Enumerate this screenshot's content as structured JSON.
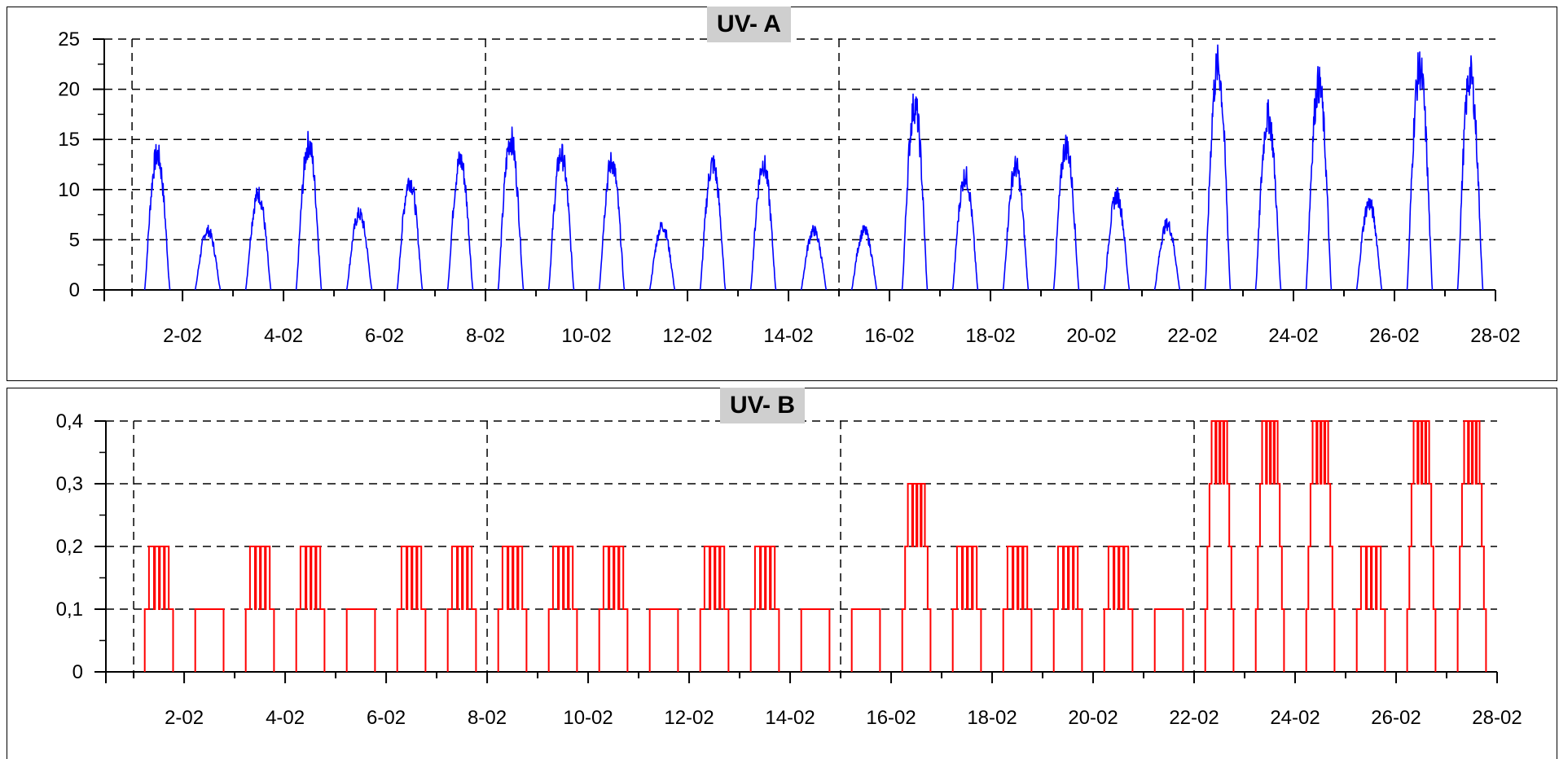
{
  "colors": {
    "uva": "#0000ff",
    "uvb": "#ff0000",
    "grid": "#000000",
    "title_bg": "#cfcfcf"
  },
  "chart_data": [
    {
      "type": "line",
      "title": "UV- A",
      "xlabel": "",
      "ylabel": "",
      "x_unit": "day of February",
      "xlim": [
        0.45,
        28
      ],
      "ylim": [
        0,
        25
      ],
      "y_ticks": [
        0,
        5,
        10,
        15,
        20,
        25
      ],
      "y_tick_labels": [
        "0",
        "5",
        "10",
        "15",
        "20",
        "25"
      ],
      "x_ticks": [
        2,
        4,
        6,
        8,
        10,
        12,
        14,
        16,
        18,
        20,
        22,
        24,
        26,
        28
      ],
      "x_tick_labels": [
        "2-02",
        "4-02",
        "6-02",
        "8-02",
        "10-02",
        "12-02",
        "14-02",
        "16-02",
        "18-02",
        "20-02",
        "22-02",
        "24-02",
        "26-02",
        "28-02"
      ],
      "vertical_gridlines": [
        1,
        8,
        15,
        22
      ],
      "grid": "dashed horizontal at major y ticks",
      "series": [
        {
          "daily_peaks": [
            {
              "day": 1,
              "peak": 14.8
            },
            {
              "day": 2,
              "peak": 6.5
            },
            {
              "day": 3,
              "peak": 10.5
            },
            {
              "day": 4,
              "peak": 16.0
            },
            {
              "day": 5,
              "peak": 8.3
            },
            {
              "day": 6,
              "peak": 12.0
            },
            {
              "day": 7,
              "peak": 14.2
            },
            {
              "day": 8,
              "peak": 16.5
            },
            {
              "day": 9,
              "peak": 14.8
            },
            {
              "day": 10,
              "peak": 14.0
            },
            {
              "day": 11,
              "peak": 7.0
            },
            {
              "day": 12,
              "peak": 13.8
            },
            {
              "day": 13,
              "peak": 13.8
            },
            {
              "day": 14,
              "peak": 6.5
            },
            {
              "day": 15,
              "peak": 6.5
            },
            {
              "day": 16,
              "peak": 20.2
            },
            {
              "day": 17,
              "peak": 12.5
            },
            {
              "day": 18,
              "peak": 13.5
            },
            {
              "day": 19,
              "peak": 15.8
            },
            {
              "day": 20,
              "peak": 10.3
            },
            {
              "day": 21,
              "peak": 7.2
            },
            {
              "day": 22,
              "peak": 24.5
            },
            {
              "day": 23,
              "peak": 19.0
            },
            {
              "day": 24,
              "peak": 22.5
            },
            {
              "day": 25,
              "peak": 9.5
            },
            {
              "day": 26,
              "peak": 24.2
            },
            {
              "day": 27,
              "peak": 23.5
            }
          ]
        }
      ]
    },
    {
      "type": "line",
      "title": "UV- B",
      "xlabel": "",
      "ylabel": "",
      "x_unit": "day of February",
      "xlim": [
        0.45,
        28
      ],
      "ylim": [
        0,
        0.4
      ],
      "y_ticks": [
        0,
        0.1,
        0.2,
        0.3,
        0.4
      ],
      "y_tick_labels": [
        "0",
        "0,1",
        "0,2",
        "0,3",
        "0,4"
      ],
      "x_ticks": [
        2,
        4,
        6,
        8,
        10,
        12,
        14,
        16,
        18,
        20,
        22,
        24,
        26,
        28
      ],
      "x_tick_labels": [
        "2-02",
        "4-02",
        "6-02",
        "8-02",
        "10-02",
        "12-02",
        "14-02",
        "16-02",
        "18-02",
        "20-02",
        "22-02",
        "24-02",
        "26-02",
        "28-02"
      ],
      "vertical_gridlines": [
        1,
        8,
        15,
        22
      ],
      "grid": "dashed horizontal at major y ticks",
      "series": [
        {
          "daily_peaks": [
            {
              "day": 1,
              "peak": 0.2
            },
            {
              "day": 2,
              "peak": 0.1
            },
            {
              "day": 3,
              "peak": 0.2
            },
            {
              "day": 4,
              "peak": 0.2
            },
            {
              "day": 5,
              "peak": 0.1
            },
            {
              "day": 6,
              "peak": 0.2
            },
            {
              "day": 7,
              "peak": 0.2
            },
            {
              "day": 8,
              "peak": 0.2
            },
            {
              "day": 9,
              "peak": 0.2
            },
            {
              "day": 10,
              "peak": 0.2
            },
            {
              "day": 11,
              "peak": 0.1
            },
            {
              "day": 12,
              "peak": 0.2
            },
            {
              "day": 13,
              "peak": 0.2
            },
            {
              "day": 14,
              "peak": 0.1
            },
            {
              "day": 15,
              "peak": 0.1
            },
            {
              "day": 16,
              "peak": 0.3
            },
            {
              "day": 17,
              "peak": 0.2
            },
            {
              "day": 18,
              "peak": 0.2
            },
            {
              "day": 19,
              "peak": 0.2
            },
            {
              "day": 20,
              "peak": 0.2
            },
            {
              "day": 21,
              "peak": 0.1
            },
            {
              "day": 22,
              "peak": 0.4
            },
            {
              "day": 23,
              "peak": 0.4
            },
            {
              "day": 24,
              "peak": 0.4
            },
            {
              "day": 25,
              "peak": 0.2
            },
            {
              "day": 26,
              "peak": 0.4
            },
            {
              "day": 27,
              "peak": 0.4
            }
          ]
        }
      ]
    }
  ]
}
